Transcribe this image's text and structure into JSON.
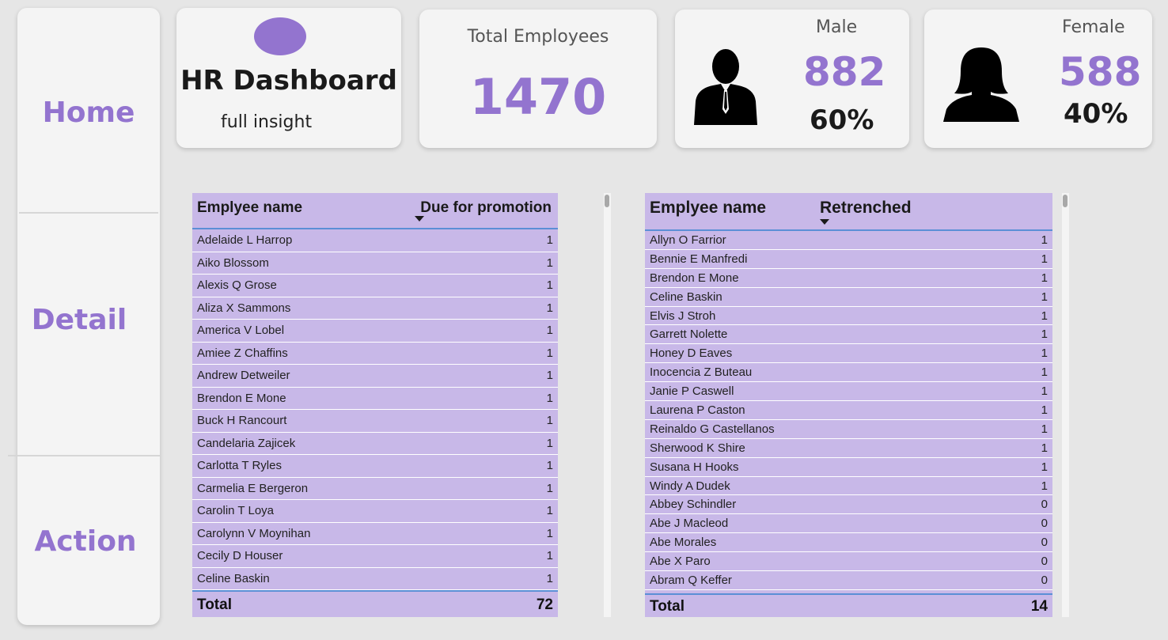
{
  "nav": {
    "home": "Home",
    "detail": "Detail",
    "action": "Action"
  },
  "header": {
    "title": "HR Dashboard",
    "subtitle": "full insight"
  },
  "kpis": {
    "total_label": "Total Employees",
    "total_value": "1470",
    "male_label": "Male",
    "male_value": "882",
    "male_pct": "60%",
    "female_label": "Female",
    "female_value": "588",
    "female_pct": "40%"
  },
  "promotion_table": {
    "col_name": "Emplyee name",
    "col_value": "Due for promotion",
    "rows": [
      {
        "name": "Adelaide L Harrop",
        "value": "1"
      },
      {
        "name": "Aiko Blossom",
        "value": "1"
      },
      {
        "name": "Alexis Q Grose",
        "value": "1"
      },
      {
        "name": "Aliza X Sammons",
        "value": "1"
      },
      {
        "name": "America V Lobel",
        "value": "1"
      },
      {
        "name": "Amiee Z Chaffins",
        "value": "1"
      },
      {
        "name": "Andrew Detweiler",
        "value": "1"
      },
      {
        "name": "Brendon E Mone",
        "value": "1"
      },
      {
        "name": "Buck H Rancourt",
        "value": "1"
      },
      {
        "name": "Candelaria Zajicek",
        "value": "1"
      },
      {
        "name": "Carlotta T Ryles",
        "value": "1"
      },
      {
        "name": "Carmelia E Bergeron",
        "value": "1"
      },
      {
        "name": "Carolin T Loya",
        "value": "1"
      },
      {
        "name": "Carolynn V Moynihan",
        "value": "1"
      },
      {
        "name": "Cecily D Houser",
        "value": "1"
      },
      {
        "name": "Celine Baskin",
        "value": "1"
      }
    ],
    "total_label": "Total",
    "total_value": "72"
  },
  "retrenched_table": {
    "col_name": "Emplyee name",
    "col_value": "Retrenched",
    "rows": [
      {
        "name": "Allyn O Farrior",
        "value": "1"
      },
      {
        "name": "Bennie E Manfredi",
        "value": "1"
      },
      {
        "name": "Brendon E Mone",
        "value": "1"
      },
      {
        "name": "Celine Baskin",
        "value": "1"
      },
      {
        "name": "Elvis J Stroh",
        "value": "1"
      },
      {
        "name": "Garrett Nolette",
        "value": "1"
      },
      {
        "name": "Honey D Eaves",
        "value": "1"
      },
      {
        "name": "Inocencia Z Buteau",
        "value": "1"
      },
      {
        "name": "Janie P Caswell",
        "value": "1"
      },
      {
        "name": "Laurena P Caston",
        "value": "1"
      },
      {
        "name": "Reinaldo G Castellanos",
        "value": "1"
      },
      {
        "name": "Sherwood K Shire",
        "value": "1"
      },
      {
        "name": "Susana H Hooks",
        "value": "1"
      },
      {
        "name": "Windy A Dudek",
        "value": "1"
      },
      {
        "name": "Abbey Schindler",
        "value": "0"
      },
      {
        "name": "Abe J Macleod",
        "value": "0"
      },
      {
        "name": "Abe Morales",
        "value": "0"
      },
      {
        "name": "Abe X Paro",
        "value": "0"
      },
      {
        "name": "Abram Q Keffer",
        "value": "0"
      }
    ],
    "total_label": "Total",
    "total_value": "14"
  },
  "colors": {
    "accent": "#9374cf",
    "table_bg": "#c8b8e8",
    "header_rule": "#5b8fd6"
  },
  "icons": {
    "male": "male-person-icon",
    "female": "female-person-icon",
    "sort": "sort-desc-icon"
  }
}
